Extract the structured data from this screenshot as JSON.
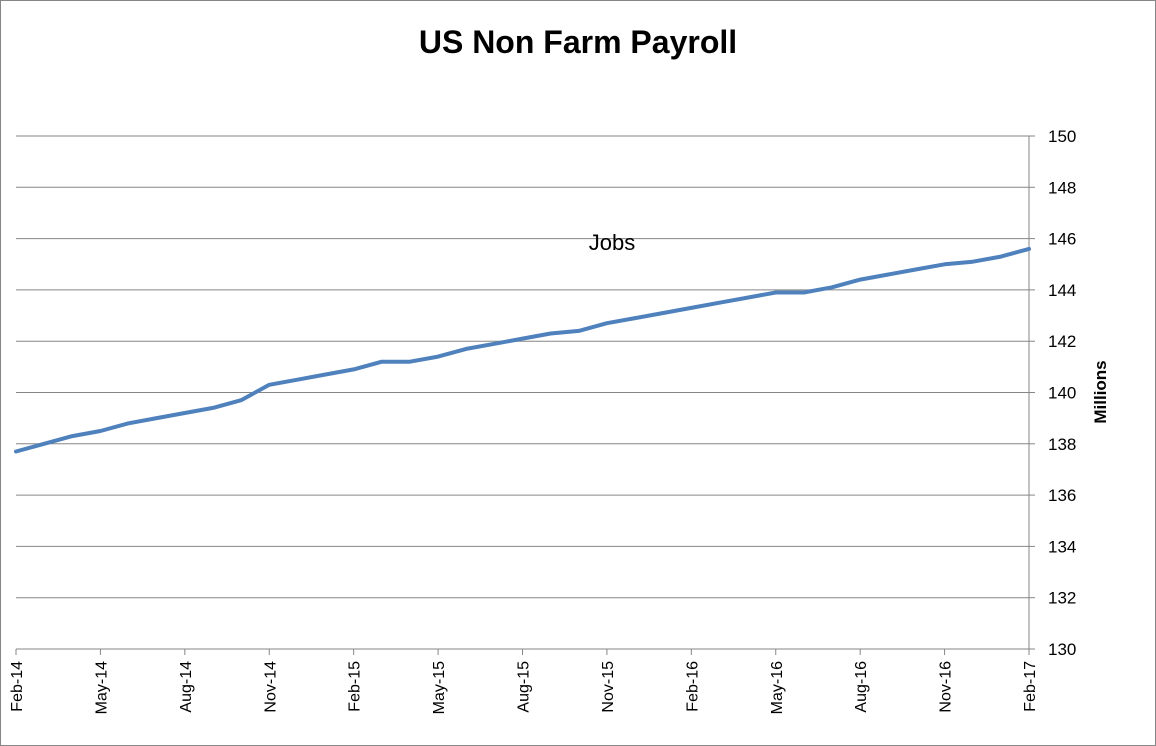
{
  "chart_data": {
    "type": "line",
    "title": "US Non Farm Payroll",
    "ylabel": "Millions",
    "annotation": "Jobs",
    "ylim": [
      130,
      150
    ],
    "y_ticks": [
      130,
      132,
      134,
      136,
      138,
      140,
      142,
      144,
      146,
      148,
      150
    ],
    "y_axis_position": "right",
    "grid": true,
    "legend": "none",
    "x_tick_labels": [
      "Feb-14",
      "May-14",
      "Aug-14",
      "Nov-14",
      "Feb-15",
      "May-15",
      "Aug-15",
      "Nov-15",
      "Feb-16",
      "May-16",
      "Aug-16",
      "Nov-16",
      "Feb-17"
    ],
    "x": [
      "Feb-14",
      "Mar-14",
      "Apr-14",
      "May-14",
      "Jun-14",
      "Jul-14",
      "Aug-14",
      "Sep-14",
      "Oct-14",
      "Nov-14",
      "Dec-14",
      "Jan-15",
      "Feb-15",
      "Mar-15",
      "Apr-15",
      "May-15",
      "Jun-15",
      "Jul-15",
      "Aug-15",
      "Sep-15",
      "Oct-15",
      "Nov-15",
      "Dec-15",
      "Jan-16",
      "Feb-16",
      "Mar-16",
      "Apr-16",
      "May-16",
      "Jun-16",
      "Jul-16",
      "Aug-16",
      "Sep-16",
      "Oct-16",
      "Nov-16",
      "Dec-16",
      "Jan-17",
      "Feb-17"
    ],
    "series": [
      {
        "values": [
          137.7,
          138.0,
          138.3,
          138.5,
          138.8,
          139.0,
          139.2,
          139.4,
          139.7,
          140.3,
          140.5,
          140.7,
          140.9,
          141.2,
          141.2,
          141.4,
          141.7,
          141.9,
          142.1,
          142.3,
          142.4,
          142.7,
          142.9,
          143.1,
          143.3,
          143.5,
          143.7,
          143.9,
          143.9,
          144.1,
          144.4,
          144.6,
          144.8,
          145.0,
          145.1,
          145.3,
          145.6
        ],
        "color": "#4f81bd"
      }
    ]
  }
}
